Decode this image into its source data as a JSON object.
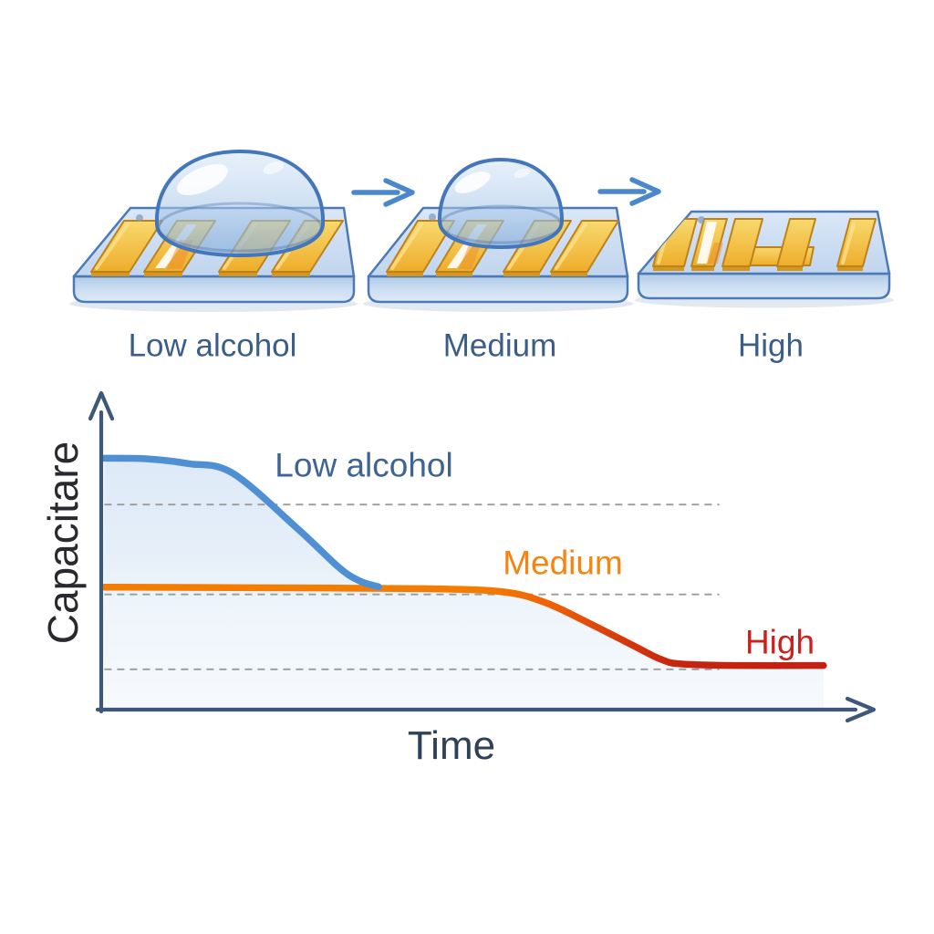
{
  "background": "#ffffff",
  "figure": {
    "stages": [
      {
        "label": "Low alcohol",
        "droplet": "large droplet on interdigitated gold electrode chip"
      },
      {
        "label": "Medium",
        "droplet": "smaller droplet on interdigitated gold electrode chip"
      },
      {
        "label": "High",
        "droplet": "no droplet, bare serpentine gold electrodes"
      }
    ],
    "arrows": [
      {
        "from": "Low alcohol",
        "to": "Medium",
        "icon": "arrow-right"
      },
      {
        "from": "Medium",
        "to": "High",
        "icon": "arrow-right"
      }
    ],
    "label_color": "#3c5e86",
    "arrow_color": "#4b87cb",
    "chip_colors": {
      "substrate": "#c6d9ef",
      "outline": "#4c7ab6",
      "electrode_gold": "#efb232"
    },
    "droplet_color": "#a9c8e8"
  },
  "chart_data": {
    "type": "line",
    "title": "",
    "xlabel": "Time",
    "ylabel": "Capacitare",
    "xlabel_color": "#2e4156",
    "ylabel_color": "#2a2a2e",
    "axis_color": "#3d5878",
    "grid_color": "#9b9b9b",
    "area_fill_top": "#d7e6f7",
    "area_fill_bottom": "#f7fafd",
    "x_ticks": [],
    "y_ticks": [],
    "axes_arrows": true,
    "legend_position": "inline labels beside curves",
    "grid": "3 dashed horizontal reference lines",
    "note": "qualitative sketch: capacitance decay over time, values normalized 0-1 of axis span",
    "series": [
      {
        "id": "low",
        "name": "Low alcohol",
        "color": "#4f8fd4",
        "label_color": "#3e6394",
        "points": [
          [
            0.004,
            0.792
          ],
          [
            0.06,
            0.79
          ],
          [
            0.113,
            0.775
          ],
          [
            0.17,
            0.745
          ],
          [
            0.255,
            0.568
          ],
          [
            0.308,
            0.447
          ],
          [
            0.335,
            0.405
          ],
          [
            0.359,
            0.387
          ]
        ]
      },
      {
        "id": "medium",
        "name": "Medium",
        "color": "#f57c02",
        "label_color": "#f68410",
        "points": [
          [
            0.004,
            0.386
          ],
          [
            0.2,
            0.384
          ],
          [
            0.42,
            0.381
          ],
          [
            0.52,
            0.371
          ],
          [
            0.575,
            0.337
          ],
          [
            0.635,
            0.268
          ],
          [
            0.69,
            0.2
          ],
          [
            0.725,
            0.158
          ],
          [
            0.75,
            0.144
          ]
        ]
      },
      {
        "id": "high",
        "name": "High",
        "color": "#c32112",
        "label_color": "#cd1f1c",
        "points": [
          [
            0.75,
            0.144
          ],
          [
            0.82,
            0.139
          ],
          [
            0.935,
            0.139
          ]
        ]
      }
    ],
    "envelope_points": [
      [
        0.004,
        0.792
      ],
      [
        0.06,
        0.79
      ],
      [
        0.113,
        0.775
      ],
      [
        0.17,
        0.745
      ],
      [
        0.255,
        0.568
      ],
      [
        0.308,
        0.447
      ],
      [
        0.335,
        0.405
      ],
      [
        0.359,
        0.387
      ],
      [
        0.42,
        0.381
      ],
      [
        0.52,
        0.371
      ],
      [
        0.575,
        0.337
      ],
      [
        0.635,
        0.268
      ],
      [
        0.69,
        0.2
      ],
      [
        0.725,
        0.158
      ],
      [
        0.75,
        0.144
      ],
      [
        0.82,
        0.139
      ],
      [
        0.935,
        0.139
      ]
    ],
    "gridlines": [
      {
        "c": 0.646,
        "t0": 0.004,
        "t1": 0.8
      },
      {
        "c": 0.363,
        "t0": 0.004,
        "t1": 0.8
      },
      {
        "c": 0.127,
        "t0": 0.004,
        "t1": 0.8
      }
    ]
  }
}
